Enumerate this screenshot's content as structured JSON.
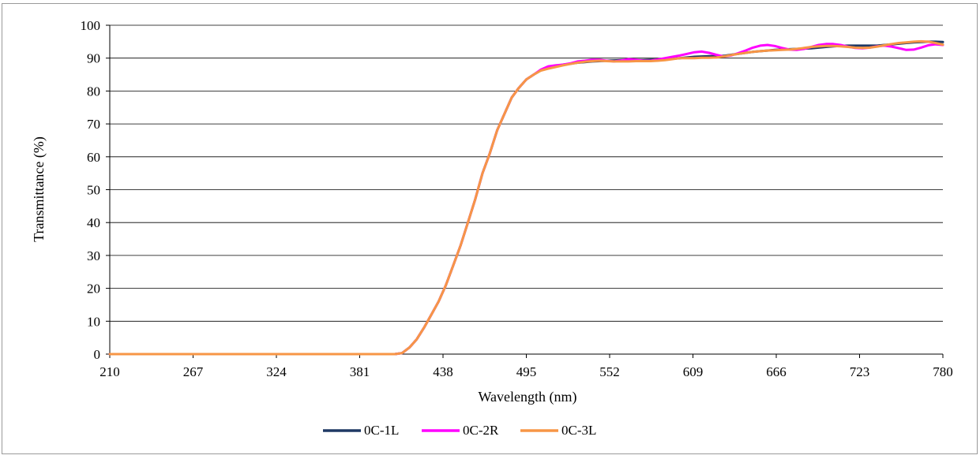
{
  "chart_data": {
    "type": "line",
    "title": "",
    "xlabel": "Wavelength (nm)",
    "ylabel": "Transmittance (%)",
    "xlim": [
      210,
      780
    ],
    "ylim": [
      0,
      100
    ],
    "x_ticks": [
      210,
      267,
      324,
      381,
      438,
      495,
      552,
      609,
      666,
      723,
      780
    ],
    "x_tick_labels": [
      "210",
      "267",
      "324",
      "381",
      "438",
      "495",
      "552",
      "609",
      "666",
      "723",
      "780"
    ],
    "y_ticks": [
      0,
      10,
      20,
      30,
      40,
      50,
      60,
      70,
      80,
      90,
      100
    ],
    "y_tick_labels": [
      "0",
      "10",
      "20",
      "30",
      "40",
      "50",
      "60",
      "70",
      "80",
      "90",
      "100"
    ],
    "grid": "horizontal",
    "legend_position": "bottom",
    "x": [
      210,
      300,
      400,
      405,
      410,
      415,
      420,
      425,
      430,
      435,
      440,
      445,
      450,
      455,
      460,
      465,
      470,
      475,
      480,
      485,
      490,
      495,
      500,
      505,
      510,
      515,
      520,
      525,
      530,
      535,
      540,
      545,
      550,
      555,
      560,
      565,
      570,
      575,
      580,
      585,
      590,
      595,
      600,
      605,
      610,
      615,
      620,
      625,
      630,
      635,
      640,
      645,
      650,
      655,
      660,
      665,
      670,
      675,
      680,
      685,
      690,
      695,
      700,
      705,
      710,
      715,
      720,
      725,
      730,
      735,
      740,
      745,
      750,
      755,
      760,
      765,
      770,
      775,
      780
    ],
    "series": [
      {
        "name": "0C-1L",
        "color": "#1f3864",
        "values": [
          0,
          0,
          0,
          0,
          0.3,
          2,
          4.5,
          8,
          12,
          16,
          21,
          27,
          33,
          40,
          47,
          55,
          61,
          68,
          73,
          78,
          81,
          83.5,
          85,
          86.3,
          87,
          87.5,
          88,
          88.3,
          88.6,
          88.8,
          89,
          89.1,
          89.2,
          89.3,
          89.4,
          89.4,
          89.4,
          89.4,
          89.5,
          89.5,
          89.6,
          89.8,
          90,
          90.2,
          90.4,
          90.5,
          90.6,
          90.6,
          90.7,
          91,
          91.3,
          91.6,
          91.9,
          92.1,
          92.3,
          92.5,
          92.6,
          92.7,
          92.8,
          92.9,
          93,
          93.2,
          93.4,
          93.6,
          93.7,
          93.8,
          93.8,
          93.8,
          93.8,
          93.8,
          94,
          94.2,
          94.4,
          94.6,
          94.8,
          94.9,
          95,
          95,
          94.9
        ]
      },
      {
        "name": "0C-2R",
        "color": "#ff00ff",
        "values": [
          0,
          0,
          0,
          0,
          0.3,
          2,
          4.5,
          8,
          12,
          16,
          21,
          27,
          33,
          40,
          47,
          55,
          61,
          68,
          73,
          78,
          81,
          83.5,
          85,
          86.5,
          87.5,
          87.8,
          88,
          88.4,
          89,
          89.2,
          89.5,
          89.5,
          89.2,
          89,
          89.3,
          89.7,
          89.5,
          89.2,
          89.2,
          89.6,
          90,
          90.4,
          90.8,
          91.3,
          91.8,
          92,
          91.6,
          91,
          90.5,
          90.8,
          91.5,
          92.3,
          93.2,
          93.8,
          94,
          93.7,
          93.1,
          92.6,
          92.5,
          92.8,
          93.4,
          94,
          94.3,
          94.3,
          94,
          93.5,
          93.1,
          93,
          93.2,
          93.6,
          93.8,
          93.5,
          93,
          92.5,
          92.6,
          93.2,
          93.9,
          94.2,
          94
        ]
      },
      {
        "name": "0C-3L",
        "color": "#f79646",
        "values": [
          0,
          0,
          0,
          0,
          0.3,
          2,
          4.5,
          8,
          12,
          16,
          21,
          27,
          33,
          40,
          47,
          55,
          61,
          68,
          73,
          78,
          81,
          83.5,
          85,
          86.2,
          86.8,
          87.3,
          87.8,
          88.2,
          88.6,
          88.9,
          89.1,
          89.2,
          89.1,
          89,
          89,
          89,
          89.1,
          89.1,
          89.1,
          89.2,
          89.4,
          89.7,
          90,
          90,
          90,
          90.1,
          90.1,
          90.2,
          90.5,
          90.9,
          91.3,
          91.6,
          91.9,
          92.1,
          92.3,
          92.4,
          92.5,
          92.6,
          92.8,
          93.1,
          93.4,
          93.6,
          93.7,
          93.7,
          93.6,
          93.4,
          93.2,
          93.1,
          93.2,
          93.5,
          93.9,
          94.3,
          94.6,
          94.8,
          95,
          95.1,
          95,
          94.6,
          94.1
        ]
      }
    ]
  }
}
